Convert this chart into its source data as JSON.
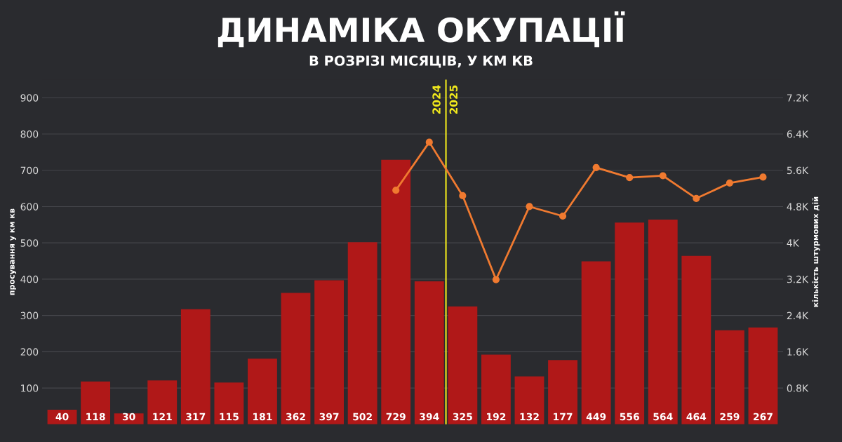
{
  "chart_data": {
    "type": "bar",
    "title": "ДИНАМІКА ОКУПАЦІЇ",
    "subtitle": "В РОЗРІЗІ МІСЯЦІВ, У КМ КВ",
    "ylabel": "просування у км кв",
    "y2label": "кількість штурмових дій",
    "categories": [
      null,
      null,
      null,
      null,
      null,
      null,
      null,
      null,
      null,
      null,
      null,
      null,
      null,
      null,
      null,
      null,
      null,
      null,
      null,
      null,
      null,
      null
    ],
    "series": [
      {
        "color": "#b01818",
        "values": [
          40,
          118,
          30,
          121,
          317,
          115,
          181,
          362,
          397,
          502,
          729,
          394,
          325,
          192,
          132,
          177,
          449,
          556,
          564,
          464,
          259,
          267
        ],
        "value_labels": [
          "40",
          "118",
          "30",
          "121",
          "317",
          "115",
          "181",
          "362",
          "397",
          "502",
          "729",
          "394",
          "325",
          "192",
          "132",
          "177",
          "449",
          "556",
          "564",
          "464",
          "259",
          "267"
        ]
      },
      {
        "type": "line",
        "axis": "y2",
        "color": "#f07a30",
        "marker": "circle",
        "values": [
          null,
          null,
          null,
          null,
          null,
          null,
          null,
          null,
          null,
          null,
          5160,
          6220,
          5040,
          3190,
          4800,
          4590,
          5660,
          5440,
          5480,
          4980,
          5320,
          5450
        ]
      }
    ],
    "ylim": [
      0,
      950
    ],
    "yticks": [
      100,
      200,
      300,
      400,
      500,
      600,
      700,
      800,
      900
    ],
    "y2lim": [
      0,
      7600
    ],
    "y2ticks": [
      {
        "value": 800,
        "label": "0.8K"
      },
      {
        "value": 1600,
        "label": "1.6K"
      },
      {
        "value": 2400,
        "label": "2.4K"
      },
      {
        "value": 3200,
        "label": "3.2K"
      },
      {
        "value": 4000,
        "label": "4K"
      },
      {
        "value": 4800,
        "label": "4.8K"
      },
      {
        "value": 5600,
        "label": "5.6K"
      },
      {
        "value": 6400,
        "label": "6.4K"
      },
      {
        "value": 7200,
        "label": "7.2K"
      }
    ],
    "annotations": [
      "2024",
      "2025"
    ],
    "grid": "y",
    "legend": false
  }
}
